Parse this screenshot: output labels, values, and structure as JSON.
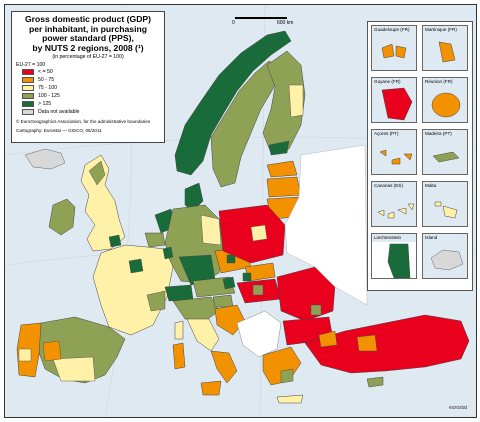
{
  "legend": {
    "title": "Gross domestic product (GDP)\nper inhabitant, in purchasing\npower standard (PPS),\nby NUTS 2 regions, 2008 (¹)",
    "subtitle": "(in percentage of EU-27 = 100)",
    "unit": "EU-27 = 100",
    "classes": [
      {
        "label": "< = 50",
        "color": "#e8001c"
      },
      {
        "label": "50 - 75",
        "color": "#f39200"
      },
      {
        "label": "75 - 100",
        "color": "#fff2a8"
      },
      {
        "label": "100 - 125",
        "color": "#8ea155"
      },
      {
        "label": "> 125",
        "color": "#1a6b3a"
      },
      {
        "label": "Data not available",
        "color": "#d8d8d8"
      }
    ],
    "footnote1": "© EuroGeographics Association, for the administrative boundaries",
    "footnote2": "Cartography: Eurostat — GISCO, 05/2011"
  },
  "scale": {
    "zero": "0",
    "max": "600 km"
  },
  "insets": [
    {
      "label": "Guadeloupe (FR)",
      "color": "#f39200"
    },
    {
      "label": "Martinique (FR)",
      "color": "#f39200"
    },
    {
      "label": "Guyane (FR)",
      "color": "#e8001c"
    },
    {
      "label": "Réunion (FR)",
      "color": "#f39200"
    },
    {
      "label": "Açores (PT)",
      "color": "#f39200"
    },
    {
      "label": "Madeira (PT)",
      "color": "#8ea155"
    },
    {
      "label": "Canarias (ES)",
      "color": "#fff2a8"
    },
    {
      "label": "Malta",
      "color": "#fff2a8"
    },
    {
      "label": "Liechtenstein",
      "color": "#1a6b3a"
    },
    {
      "label": "Ísland",
      "color": "#d8d8d8"
    }
  ],
  "logo": "eurostat"
}
